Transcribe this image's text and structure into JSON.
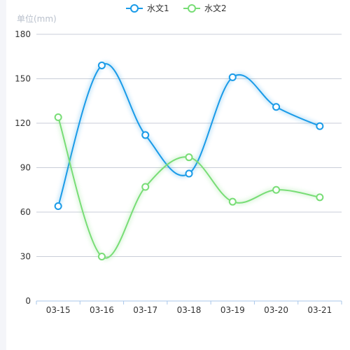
{
  "chart_data": {
    "type": "line",
    "smooth": true,
    "ylabel": "单位(mm)",
    "categories": [
      "03-15",
      "03-16",
      "03-17",
      "03-18",
      "03-19",
      "03-20",
      "03-21"
    ],
    "ylim": [
      0,
      180
    ],
    "yticks": [
      0,
      30,
      60,
      90,
      120,
      150,
      180
    ],
    "grid": true,
    "legend_position": "top-center",
    "series": [
      {
        "name": "水文1",
        "color": "#1a9be8",
        "values": [
          64,
          159,
          112,
          86,
          151,
          131,
          118
        ]
      },
      {
        "name": "水文2",
        "color": "#78dd76",
        "values": [
          124,
          30,
          77,
          97,
          67,
          75,
          70
        ]
      }
    ]
  }
}
